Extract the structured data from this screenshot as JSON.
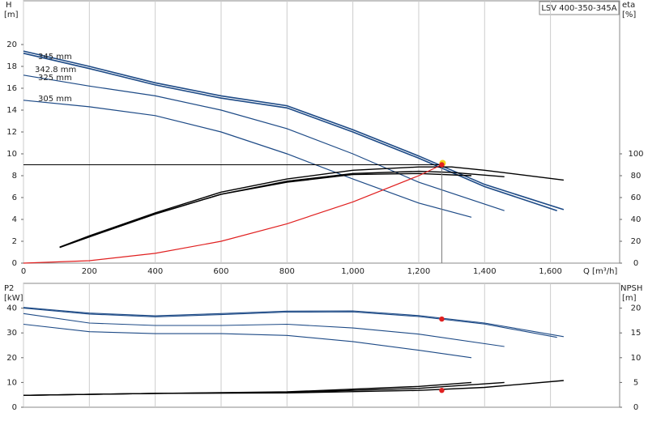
{
  "chart_data": [
    {
      "type": "line",
      "title": "LSV 400-350-345A",
      "y_label": "H",
      "y_unit": "[m]",
      "y2_label": "eta",
      "y2_unit": "[%]",
      "x_label": "Q [m³/h]",
      "xlim": [
        0,
        1810
      ],
      "ylim": [
        0,
        24
      ],
      "y2lim": [
        0,
        240
      ],
      "xticks": [
        0,
        200,
        400,
        600,
        800,
        {
          "value": 1000,
          "label": "1,000"
        },
        {
          "value": 1200,
          "label": "1,200"
        },
        {
          "value": 1400,
          "label": "1,400"
        },
        {
          "value": 1600,
          "label": "1,600"
        }
      ],
      "yticks": [
        0,
        2,
        4,
        6,
        8,
        10,
        12,
        14,
        16,
        18,
        20
      ],
      "y2ticks": [
        0,
        20,
        40,
        60,
        80,
        100
      ],
      "grid": true,
      "series": [
        {
          "name": "345 mm",
          "color": "#1d4a86",
          "x": [
            0,
            200,
            400,
            600,
            800,
            1000,
            1200,
            1400,
            1640
          ],
          "values": [
            19.4,
            18.0,
            16.5,
            15.3,
            14.4,
            12.2,
            9.8,
            7.2,
            4.9
          ]
        },
        {
          "name": "342.8 mm",
          "color": "#1d4a86",
          "x": [
            0,
            200,
            400,
            600,
            800,
            1000,
            1200,
            1400,
            1620
          ],
          "values": [
            19.2,
            17.8,
            16.3,
            15.1,
            14.2,
            12.0,
            9.6,
            7.0,
            4.8
          ]
        },
        {
          "name": "325 mm",
          "color": "#1d4a86",
          "x": [
            0,
            200,
            400,
            600,
            800,
            1000,
            1200,
            1460
          ],
          "values": [
            17.2,
            16.2,
            15.3,
            14.0,
            12.3,
            10.0,
            7.4,
            4.8
          ]
        },
        {
          "name": "305 mm",
          "color": "#1d4a86",
          "x": [
            0,
            200,
            400,
            600,
            800,
            1000,
            1200,
            1360
          ],
          "values": [
            14.9,
            14.3,
            13.5,
            12.0,
            10.0,
            7.7,
            5.5,
            4.2
          ]
        },
        {
          "axis": "y2",
          "color": "#000000",
          "x": [
            110,
            200,
            400,
            600,
            800,
            1000,
            1200,
            1300,
            1400,
            1640
          ],
          "values": [
            14.7,
            25,
            46,
            65,
            77,
            85,
            88,
            88,
            85,
            76
          ]
        },
        {
          "axis": "y2",
          "color": "#000000",
          "x": [
            110,
            200,
            400,
            600,
            800,
            1000,
            1200,
            1300,
            1460
          ],
          "values": [
            14.5,
            24,
            45,
            63,
            75,
            82,
            84,
            83,
            79
          ]
        },
        {
          "axis": "y2",
          "color": "#000000",
          "x": [
            110,
            200,
            400,
            600,
            800,
            1000,
            1200,
            1360
          ],
          "values": [
            14.3,
            24,
            45,
            63,
            74,
            81,
            82,
            80
          ]
        },
        {
          "color": "#e02020",
          "x": [
            0,
            200,
            400,
            600,
            800,
            1000,
            1200,
            1270
          ],
          "values": [
            0,
            0.22,
            0.9,
            2.0,
            3.6,
            5.6,
            8.0,
            9.0
          ]
        },
        {
          "marker": true,
          "color": "#e02020",
          "x": [
            1270
          ],
          "values": [
            9.0
          ]
        }
      ]
    },
    {
      "type": "line",
      "y_label": "P2",
      "y_unit": "[kW]",
      "y2_label": "NPSH",
      "y2_unit": "[m]",
      "xlim": [
        0,
        1810
      ],
      "ylim": [
        0,
        50
      ],
      "y2lim": [
        0,
        25
      ],
      "yticks": [
        0,
        10,
        20,
        30,
        40
      ],
      "y2ticks": [
        0,
        5,
        10,
        15,
        20
      ],
      "grid": true,
      "series": [
        {
          "color": "#1d4a86",
          "x": [
            0,
            200,
            400,
            600,
            800,
            1000,
            1200,
            1400,
            1640
          ],
          "values": [
            40.3,
            38,
            36.9,
            37.8,
            38.8,
            38.9,
            37,
            34,
            28.5
          ]
        },
        {
          "color": "#1d4a86",
          "x": [
            0,
            200,
            400,
            600,
            800,
            1000,
            1200,
            1400,
            1620
          ],
          "values": [
            40.0,
            37.6,
            36.5,
            37.4,
            38.4,
            38.5,
            36.6,
            33.6,
            28.2
          ]
        },
        {
          "color": "#1d4a86",
          "x": [
            0,
            200,
            400,
            600,
            800,
            1000,
            1200,
            1460
          ],
          "values": [
            37.8,
            34,
            33,
            33,
            33.5,
            32,
            29.5,
            24.5
          ]
        },
        {
          "color": "#1d4a86",
          "x": [
            0,
            200,
            400,
            600,
            800,
            1000,
            1200,
            1360
          ],
          "values": [
            33.5,
            30.5,
            29.7,
            29.7,
            29,
            26.5,
            23,
            20
          ]
        },
        {
          "axis": "y2",
          "color": "#000000",
          "x": [
            0,
            400,
            800,
            1200,
            1400,
            1640
          ],
          "values": [
            2.4,
            2.8,
            2.9,
            3.4,
            4.0,
            5.4
          ]
        },
        {
          "axis": "y2",
          "color": "#000000",
          "x": [
            0,
            400,
            800,
            1200,
            1460
          ],
          "values": [
            2.4,
            2.8,
            3.0,
            3.8,
            5.0
          ]
        },
        {
          "axis": "y2",
          "color": "#000000",
          "x": [
            0,
            400,
            800,
            1200,
            1360
          ],
          "values": [
            2.4,
            2.8,
            3.1,
            4.2,
            5.0
          ]
        },
        {
          "marker": true,
          "color": "#e02020",
          "x": [
            1270
          ],
          "values": [
            35.6
          ]
        },
        {
          "marker": true,
          "axis": "y2",
          "color": "#e02020",
          "x": [
            1270
          ],
          "values": [
            3.4
          ]
        }
      ]
    }
  ]
}
